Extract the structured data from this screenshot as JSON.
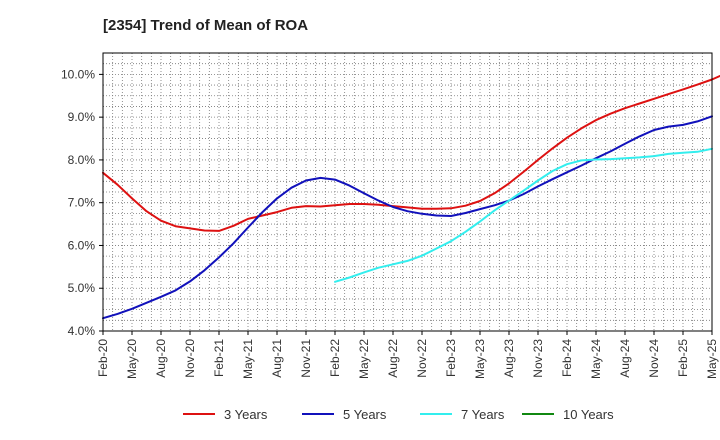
{
  "chart_data": {
    "type": "line",
    "title": "[2354]  Trend of Mean of ROA",
    "xlabel": "",
    "ylabel": "",
    "ylim": [
      4.0,
      10.5
    ],
    "grid": true,
    "legend_position": "bottom",
    "x_ticks": [
      "Feb-20",
      "May-20",
      "Aug-20",
      "Nov-20",
      "Feb-21",
      "May-21",
      "Aug-21",
      "Nov-21",
      "Feb-22",
      "May-22",
      "Aug-22",
      "Nov-22",
      "Feb-23",
      "May-23",
      "Aug-23",
      "Nov-23",
      "Feb-24",
      "May-24",
      "Aug-24",
      "Nov-24",
      "Feb-25",
      "May-25"
    ],
    "y_ticks": [
      {
        "value": 4.0,
        "label": "4.0%"
      },
      {
        "value": 5.0,
        "label": "5.0%"
      },
      {
        "value": 6.0,
        "label": "6.0%"
      },
      {
        "value": 7.0,
        "label": "7.0%"
      },
      {
        "value": 8.0,
        "label": "8.0%"
      },
      {
        "value": 9.0,
        "label": "9.0%"
      },
      {
        "value": 10.0,
        "label": "10.0%"
      }
    ],
    "series": [
      {
        "name": "3 Years",
        "color": "#dd1111",
        "points": [
          [
            0,
            7.7
          ],
          [
            1,
            7.42
          ],
          [
            2,
            7.1
          ],
          [
            3,
            6.8
          ],
          [
            4,
            6.58
          ],
          [
            5,
            6.45
          ],
          [
            6,
            6.4
          ],
          [
            7,
            6.35
          ],
          [
            8,
            6.34
          ],
          [
            9,
            6.46
          ],
          [
            10,
            6.62
          ],
          [
            11,
            6.7
          ],
          [
            12,
            6.78
          ],
          [
            13,
            6.88
          ],
          [
            14,
            6.92
          ],
          [
            15,
            6.91
          ],
          [
            16,
            6.94
          ],
          [
            17,
            6.97
          ],
          [
            18,
            6.97
          ],
          [
            19,
            6.95
          ],
          [
            20,
            6.92
          ],
          [
            21,
            6.89
          ],
          [
            22,
            6.86
          ],
          [
            23,
            6.86
          ],
          [
            24,
            6.87
          ],
          [
            25,
            6.93
          ],
          [
            26,
            7.04
          ],
          [
            27,
            7.22
          ],
          [
            28,
            7.45
          ],
          [
            29,
            7.72
          ],
          [
            30,
            8.0
          ],
          [
            31,
            8.27
          ],
          [
            32,
            8.52
          ],
          [
            33,
            8.74
          ],
          [
            34,
            8.93
          ],
          [
            35,
            9.08
          ],
          [
            36,
            9.21
          ],
          [
            37,
            9.32
          ],
          [
            38,
            9.43
          ],
          [
            39,
            9.54
          ],
          [
            40,
            9.65
          ],
          [
            41,
            9.76
          ],
          [
            42,
            9.88
          ],
          [
            43,
            10.03
          ],
          [
            44,
            10.23
          ]
        ]
      },
      {
        "name": "5 Years",
        "color": "#1111bb",
        "points": [
          [
            0,
            4.3
          ],
          [
            1,
            4.4
          ],
          [
            2,
            4.52
          ],
          [
            3,
            4.66
          ],
          [
            4,
            4.8
          ],
          [
            5,
            4.95
          ],
          [
            6,
            5.16
          ],
          [
            7,
            5.42
          ],
          [
            8,
            5.72
          ],
          [
            9,
            6.05
          ],
          [
            10,
            6.42
          ],
          [
            11,
            6.78
          ],
          [
            12,
            7.1
          ],
          [
            13,
            7.35
          ],
          [
            14,
            7.52
          ],
          [
            15,
            7.58
          ],
          [
            16,
            7.54
          ],
          [
            17,
            7.4
          ],
          [
            18,
            7.22
          ],
          [
            19,
            7.05
          ],
          [
            20,
            6.9
          ],
          [
            21,
            6.8
          ],
          [
            22,
            6.74
          ],
          [
            23,
            6.7
          ],
          [
            24,
            6.69
          ],
          [
            25,
            6.76
          ],
          [
            26,
            6.85
          ],
          [
            27,
            6.94
          ],
          [
            28,
            7.05
          ],
          [
            29,
            7.2
          ],
          [
            30,
            7.38
          ],
          [
            31,
            7.55
          ],
          [
            32,
            7.71
          ],
          [
            33,
            7.87
          ],
          [
            34,
            8.04
          ],
          [
            35,
            8.2
          ],
          [
            36,
            8.38
          ],
          [
            37,
            8.55
          ],
          [
            38,
            8.7
          ],
          [
            39,
            8.78
          ],
          [
            40,
            8.82
          ],
          [
            41,
            8.9
          ],
          [
            42,
            9.02
          ]
        ]
      },
      {
        "name": "7 Years",
        "color": "#33eeee",
        "points": [
          [
            16,
            5.15
          ],
          [
            17,
            5.25
          ],
          [
            18,
            5.37
          ],
          [
            19,
            5.48
          ],
          [
            20,
            5.56
          ],
          [
            21,
            5.64
          ],
          [
            22,
            5.76
          ],
          [
            23,
            5.93
          ],
          [
            24,
            6.1
          ],
          [
            25,
            6.32
          ],
          [
            26,
            6.56
          ],
          [
            27,
            6.82
          ],
          [
            28,
            7.05
          ],
          [
            29,
            7.28
          ],
          [
            30,
            7.52
          ],
          [
            31,
            7.74
          ],
          [
            32,
            7.9
          ],
          [
            33,
            7.99
          ],
          [
            34,
            8.01
          ],
          [
            35,
            8.02
          ],
          [
            36,
            8.04
          ],
          [
            37,
            8.06
          ],
          [
            38,
            8.09
          ],
          [
            39,
            8.14
          ],
          [
            40,
            8.17
          ],
          [
            41,
            8.19
          ],
          [
            42,
            8.26
          ]
        ]
      },
      {
        "name": "10 Years",
        "color": "#118811",
        "points": []
      }
    ]
  }
}
